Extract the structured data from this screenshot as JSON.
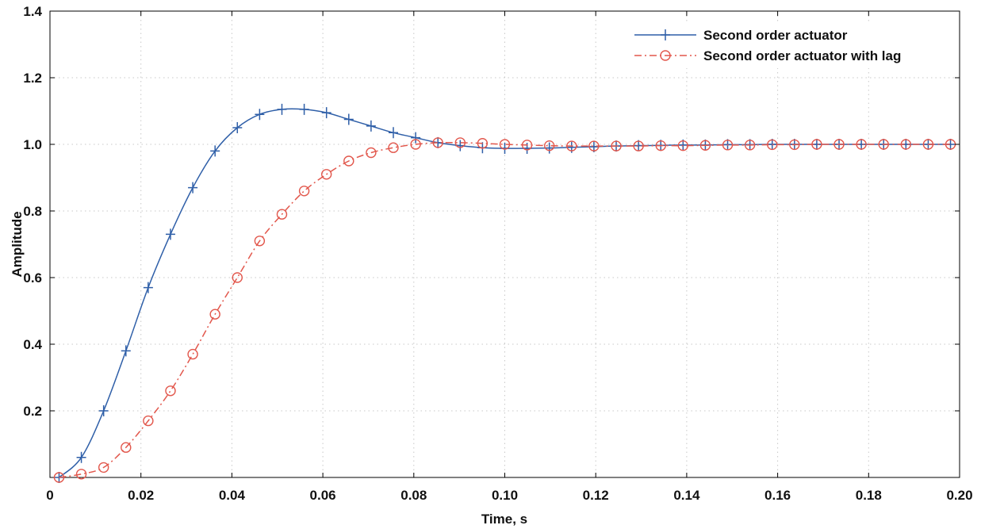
{
  "chart_data": {
    "type": "line",
    "title": "",
    "xlabel": "Time, s",
    "ylabel": "Amplitude",
    "xlim": [
      0,
      0.2
    ],
    "ylim": [
      0,
      1.4
    ],
    "grid": true,
    "legend_position": "top-right",
    "x_ticks": [
      "0",
      "0.02",
      "0.04",
      "0.06",
      "0.08",
      "0.10",
      "0.12",
      "0.14",
      "0.16",
      "0.18",
      "0.20"
    ],
    "y_ticks": [
      "0.2",
      "0.4",
      "0.6",
      "0.8",
      "1.0",
      "1.2",
      "1.4"
    ],
    "series": [
      {
        "name": "Second order actuator",
        "color": "#2f5fa8",
        "line_style": "solid",
        "marker": "plus",
        "x": [
          0.002,
          0.0069,
          0.0118,
          0.0167,
          0.0216,
          0.0265,
          0.0314,
          0.0363,
          0.0412,
          0.0461,
          0.051,
          0.0559,
          0.0608,
          0.0657,
          0.0706,
          0.0755,
          0.0804,
          0.0853,
          0.0902,
          0.0951,
          0.1,
          0.1049,
          0.1098,
          0.1147,
          0.1196,
          0.1245,
          0.1294,
          0.1343,
          0.1392,
          0.1441,
          0.149,
          0.1539,
          0.1588,
          0.1637,
          0.1686,
          0.1735,
          0.1784,
          0.1833,
          0.1882,
          0.1931,
          0.198
        ],
        "y": [
          0.0,
          0.06,
          0.2,
          0.38,
          0.57,
          0.73,
          0.87,
          0.98,
          1.05,
          1.09,
          1.105,
          1.105,
          1.095,
          1.075,
          1.055,
          1.035,
          1.02,
          1.005,
          0.996,
          0.99,
          0.988,
          0.988,
          0.989,
          0.991,
          0.993,
          0.995,
          0.996,
          0.997,
          0.998,
          0.998,
          0.999,
          0.999,
          1.0,
          1.0,
          1.0,
          1.0,
          1.0,
          1.0,
          1.0,
          1.0,
          1.0
        ]
      },
      {
        "name": "Second order actuator with lag",
        "color": "#e2574c",
        "line_style": "dashdot",
        "marker": "circle",
        "x": [
          0.002,
          0.0069,
          0.0118,
          0.0167,
          0.0216,
          0.0265,
          0.0314,
          0.0363,
          0.0412,
          0.0461,
          0.051,
          0.0559,
          0.0608,
          0.0657,
          0.0706,
          0.0755,
          0.0804,
          0.0853,
          0.0902,
          0.0951,
          0.1,
          0.1049,
          0.1098,
          0.1147,
          0.1196,
          0.1245,
          0.1294,
          0.1343,
          0.1392,
          0.1441,
          0.149,
          0.1539,
          0.1588,
          0.1637,
          0.1686,
          0.1735,
          0.1784,
          0.1833,
          0.1882,
          0.1931,
          0.198
        ],
        "y": [
          0.0,
          0.01,
          0.03,
          0.09,
          0.17,
          0.26,
          0.37,
          0.49,
          0.6,
          0.71,
          0.79,
          0.86,
          0.91,
          0.95,
          0.975,
          0.99,
          1.0,
          1.005,
          1.005,
          1.003,
          1.0,
          0.998,
          0.996,
          0.995,
          0.995,
          0.995,
          0.995,
          0.996,
          0.996,
          0.997,
          0.998,
          0.998,
          0.999,
          0.999,
          1.0,
          1.0,
          1.0,
          1.0,
          1.0,
          1.0,
          1.0
        ]
      }
    ]
  }
}
